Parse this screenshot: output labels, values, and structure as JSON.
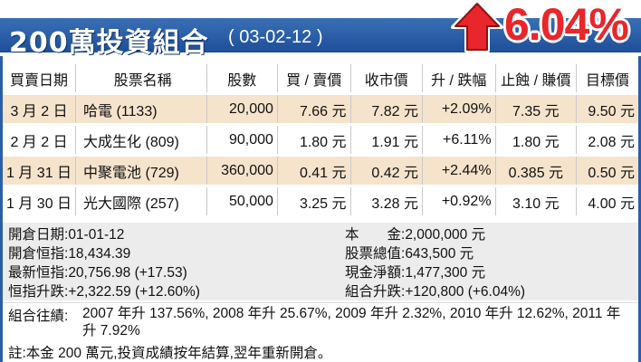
{
  "header": {
    "title": "200萬投資組合",
    "date": "( 03-02-12 )",
    "badge": "6.04%",
    "arrow_icon": "up-arrow-icon",
    "colors": {
      "title_bar": "#2b5da8",
      "badge": "#e8262b",
      "arrow": "#e8262b"
    }
  },
  "table": {
    "headers": [
      "買賣日期",
      "股票名稱",
      "股數",
      "買 / 賣價",
      "收市價",
      "升 / 跌幅",
      "止蝕 / 賺價",
      "目標價"
    ],
    "rows": [
      [
        "3 月 2 日",
        "哈電 (1133)",
        "20,000",
        "7.66 元",
        "7.82 元",
        "+2.09%",
        "7.35 元",
        "9.50 元"
      ],
      [
        "2 月 2 日",
        "大成生化 (809)",
        "90,000",
        "1.80 元",
        "1.91 元",
        "+6.11%",
        "1.80 元",
        "2.08 元"
      ],
      [
        "1 月 31 日",
        "中聚電池 (729)",
        "360,000",
        "0.41 元",
        "0.42 元",
        "+2.44%",
        "0.385 元",
        "0.50 元"
      ],
      [
        "1 月 30 日",
        "光大國際 (257)",
        "50,000",
        "3.25 元",
        "3.28 元",
        "+0.92%",
        "3.10 元",
        "4.00 元"
      ]
    ],
    "row_colors": {
      "odd": "#f5e3cc",
      "even": "#ffffff"
    }
  },
  "summary": {
    "left": [
      {
        "label": "開倉日期:",
        "value": "01-01-12"
      },
      {
        "label": "開倉恒指:",
        "value": "18,434.39"
      },
      {
        "label": "最新恒指:",
        "value": "20,756.98 (+17.53)"
      },
      {
        "label": "恒指升跌:",
        "value": "+2,322.59 (+12.60%)"
      }
    ],
    "right": [
      {
        "label": "本　　金:",
        "value": "2,000,000 元"
      },
      {
        "label": "股票總值:",
        "value": "643,500 元"
      },
      {
        "label": "現金淨額:",
        "value": "1,477,300 元"
      },
      {
        "label": "組合升跌:",
        "value": "+120,800 (+6.04%)"
      }
    ]
  },
  "performance": {
    "label": "組合往績:",
    "text": "2007 年升 137.56%, 2008 年升 25.67%, 2009 年升 2.32%, 2010 年升 12.62%, 2011 年升 7.92%"
  },
  "note": "註:本金 200 萬元,投資成績按年結算,翌年重新開倉。"
}
